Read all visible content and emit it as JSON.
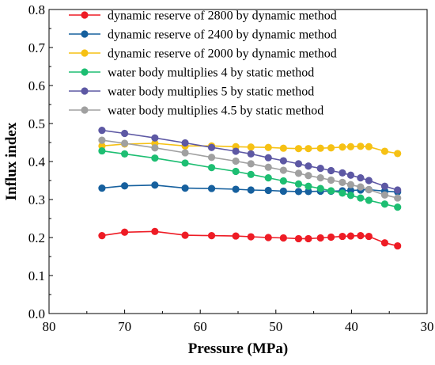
{
  "chart_data": {
    "type": "line",
    "xlabel": "Pressure (MPa)",
    "ylabel": "Influx index",
    "xlim": [
      80,
      30
    ],
    "ylim": [
      0.0,
      0.8
    ],
    "x_reversed": true,
    "xticks": [
      "80",
      "70",
      "60",
      "50",
      "40",
      "30"
    ],
    "yticks": [
      "0.0",
      "0.1",
      "0.2",
      "0.3",
      "0.4",
      "0.5",
      "0.6",
      "0.7",
      "0.8"
    ],
    "legend_position": "top-right",
    "grid": false,
    "series": [
      {
        "name": "dynamic reserve of 2800 by dynamic method",
        "color": "#ee1c25",
        "points": [
          [
            73,
            0.205
          ],
          [
            70,
            0.214
          ],
          [
            66,
            0.216
          ],
          [
            62,
            0.206
          ],
          [
            58.5,
            0.205
          ],
          [
            55.3,
            0.204
          ],
          [
            53.3,
            0.202
          ],
          [
            51,
            0.2
          ],
          [
            49,
            0.199
          ],
          [
            47,
            0.197
          ],
          [
            45.7,
            0.197
          ],
          [
            44.1,
            0.199
          ],
          [
            42.7,
            0.201
          ],
          [
            41.2,
            0.203
          ],
          [
            40.1,
            0.204
          ],
          [
            38.8,
            0.205
          ],
          [
            37.7,
            0.203
          ],
          [
            35.6,
            0.186
          ],
          [
            33.9,
            0.178
          ]
        ]
      },
      {
        "name": "dynamic reserve of 2400 by dynamic method",
        "color": "#16609e",
        "points": [
          [
            73,
            0.33
          ],
          [
            70,
            0.336
          ],
          [
            66,
            0.338
          ],
          [
            62,
            0.33
          ],
          [
            58.5,
            0.329
          ],
          [
            55.3,
            0.327
          ],
          [
            53.3,
            0.325
          ],
          [
            51,
            0.324
          ],
          [
            49,
            0.322
          ],
          [
            47,
            0.321
          ],
          [
            45.7,
            0.321
          ],
          [
            44.1,
            0.322
          ],
          [
            42.7,
            0.322
          ],
          [
            41.2,
            0.323
          ],
          [
            40.1,
            0.324
          ],
          [
            38.8,
            0.325
          ],
          [
            37.7,
            0.326
          ],
          [
            35.6,
            0.322
          ],
          [
            33.9,
            0.32
          ]
        ]
      },
      {
        "name": "dynamic reserve of 2000 by dynamic method",
        "color": "#f6c114",
        "points": [
          [
            73,
            0.441
          ],
          [
            70,
            0.446
          ],
          [
            66,
            0.448
          ],
          [
            62,
            0.441
          ],
          [
            58.5,
            0.441
          ],
          [
            55.3,
            0.439
          ],
          [
            53.3,
            0.438
          ],
          [
            51,
            0.437
          ],
          [
            49,
            0.435
          ],
          [
            47,
            0.434
          ],
          [
            45.7,
            0.434
          ],
          [
            44.1,
            0.435
          ],
          [
            42.7,
            0.436
          ],
          [
            41.2,
            0.438
          ],
          [
            40.1,
            0.439
          ],
          [
            38.8,
            0.44
          ],
          [
            37.7,
            0.439
          ],
          [
            35.6,
            0.427
          ],
          [
            33.9,
            0.421
          ]
        ]
      },
      {
        "name": "water body multiplies 4 by static method",
        "color": "#1dbe72",
        "points": [
          [
            73,
            0.428
          ],
          [
            70,
            0.42
          ],
          [
            66,
            0.409
          ],
          [
            62,
            0.396
          ],
          [
            58.5,
            0.384
          ],
          [
            55.3,
            0.374
          ],
          [
            53.3,
            0.366
          ],
          [
            51,
            0.357
          ],
          [
            49,
            0.349
          ],
          [
            47,
            0.341
          ],
          [
            45.7,
            0.335
          ],
          [
            44.1,
            0.329
          ],
          [
            42.7,
            0.323
          ],
          [
            41.2,
            0.317
          ],
          [
            40.1,
            0.311
          ],
          [
            38.8,
            0.304
          ],
          [
            37.7,
            0.298
          ],
          [
            35.6,
            0.288
          ],
          [
            33.9,
            0.28
          ]
        ]
      },
      {
        "name": "water body multiplies 5 by static method",
        "color": "#5d58a4",
        "points": [
          [
            73,
            0.482
          ],
          [
            70,
            0.474
          ],
          [
            66,
            0.462
          ],
          [
            62,
            0.449
          ],
          [
            58.5,
            0.437
          ],
          [
            55.3,
            0.427
          ],
          [
            53.3,
            0.42
          ],
          [
            51,
            0.41
          ],
          [
            49,
            0.402
          ],
          [
            47,
            0.394
          ],
          [
            45.7,
            0.388
          ],
          [
            44.1,
            0.382
          ],
          [
            42.7,
            0.376
          ],
          [
            41.2,
            0.37
          ],
          [
            40.1,
            0.364
          ],
          [
            38.8,
            0.357
          ],
          [
            37.7,
            0.35
          ],
          [
            35.6,
            0.335
          ],
          [
            33.9,
            0.325
          ]
        ]
      },
      {
        "name": "water body multiplies 4.5 by static method",
        "color": "#a0a0a0",
        "points": [
          [
            73,
            0.456
          ],
          [
            70,
            0.448
          ],
          [
            66,
            0.436
          ],
          [
            62,
            0.423
          ],
          [
            58.5,
            0.411
          ],
          [
            55.3,
            0.401
          ],
          [
            53.3,
            0.394
          ],
          [
            51,
            0.385
          ],
          [
            49,
            0.377
          ],
          [
            47,
            0.369
          ],
          [
            45.7,
            0.363
          ],
          [
            44.1,
            0.357
          ],
          [
            42.7,
            0.351
          ],
          [
            41.2,
            0.345
          ],
          [
            40.1,
            0.339
          ],
          [
            38.8,
            0.333
          ],
          [
            37.7,
            0.326
          ],
          [
            35.6,
            0.312
          ],
          [
            33.9,
            0.304
          ]
        ]
      }
    ]
  }
}
